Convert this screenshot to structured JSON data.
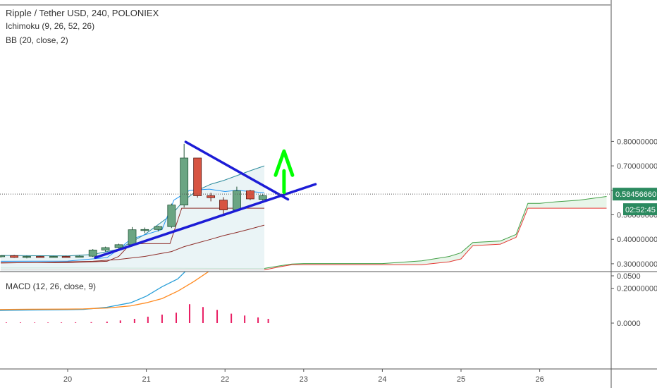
{
  "legend": {
    "title": "Ripple / Tether USD, 240, POLONIEX",
    "ichimoku": "Ichimoku (9, 26, 52, 26)",
    "bb": "BB (20, close, 2)",
    "macd": "MACD (12, 26, close, 9)"
  },
  "price_axis": {
    "ticks": [
      "0.80000000",
      "0.70000000",
      "0.60000000",
      "0.50000000",
      "0.40000000",
      "0.30000000",
      "0.20000000"
    ],
    "ticks_num": [
      0.8,
      0.7,
      0.6,
      0.5,
      0.4,
      0.3,
      0.2
    ],
    "current_price_label": "0.58456660",
    "countdown_label": "02:52:45",
    "current_price": 0.5846
  },
  "macd_axis": {
    "ticks": [
      "0.0500",
      "0.0000"
    ],
    "ticks_num": [
      0.05,
      0.0
    ]
  },
  "time_axis": {
    "ticks": [
      "20",
      "21",
      "22",
      "23",
      "24",
      "25",
      "26"
    ],
    "ticks_num": [
      20,
      21,
      22,
      23,
      24,
      25,
      26
    ]
  },
  "colors": {
    "bull": "#6ba583",
    "bear": "#d75442",
    "bull_border": "#225437",
    "bear_border": "#5b1a13",
    "bb_line": "#2b8a9b",
    "bb_fill": "#e6f2f4",
    "kijun": "#8e2e2a",
    "tenkan": "#2196f3",
    "span_a": "#43a047",
    "span_b": "#e53935",
    "cloud_bull": "#e8f5e9",
    "cloud_bear": "#fde0dc",
    "trendline": "#1c1cd6",
    "arrow": "#00ff00",
    "macd_line": "#2a9fd8",
    "signal_line": "#ff8a1f",
    "histogram": "#e91e63",
    "price_label": "#2b8a5f"
  },
  "chart_data": [
    {
      "type": "candlestick",
      "title": "Ripple / Tether USD, 240, POLONIEX",
      "ylim": [
        0.18,
        0.86
      ],
      "xlim": [
        19.15,
        26.9
      ],
      "candles": [
        {
          "t": 19.15,
          "o": 0.33,
          "h": 0.335,
          "l": 0.325,
          "c": 0.333
        },
        {
          "t": 19.32,
          "o": 0.333,
          "h": 0.336,
          "l": 0.324,
          "c": 0.326
        },
        {
          "t": 19.48,
          "o": 0.327,
          "h": 0.333,
          "l": 0.322,
          "c": 0.33
        },
        {
          "t": 19.65,
          "o": 0.33,
          "h": 0.332,
          "l": 0.326,
          "c": 0.329
        },
        {
          "t": 19.82,
          "o": 0.329,
          "h": 0.332,
          "l": 0.327,
          "c": 0.33
        },
        {
          "t": 19.98,
          "o": 0.33,
          "h": 0.333,
          "l": 0.327,
          "c": 0.329
        },
        {
          "t": 20.15,
          "o": 0.329,
          "h": 0.334,
          "l": 0.326,
          "c": 0.331
        },
        {
          "t": 20.32,
          "o": 0.331,
          "h": 0.36,
          "l": 0.328,
          "c": 0.356
        },
        {
          "t": 20.48,
          "o": 0.356,
          "h": 0.37,
          "l": 0.35,
          "c": 0.366
        },
        {
          "t": 20.65,
          "o": 0.366,
          "h": 0.382,
          "l": 0.362,
          "c": 0.378
        },
        {
          "t": 20.82,
          "o": 0.378,
          "h": 0.45,
          "l": 0.372,
          "c": 0.439
        },
        {
          "t": 20.98,
          "o": 0.439,
          "h": 0.448,
          "l": 0.425,
          "c": 0.44
        },
        {
          "t": 21.15,
          "o": 0.44,
          "h": 0.455,
          "l": 0.432,
          "c": 0.452
        },
        {
          "t": 21.32,
          "o": 0.452,
          "h": 0.546,
          "l": 0.446,
          "c": 0.54
        },
        {
          "t": 21.48,
          "o": 0.54,
          "h": 0.79,
          "l": 0.53,
          "c": 0.732
        },
        {
          "t": 21.65,
          "o": 0.732,
          "h": 0.732,
          "l": 0.57,
          "c": 0.578
        },
        {
          "t": 21.82,
          "o": 0.578,
          "h": 0.59,
          "l": 0.555,
          "c": 0.57
        },
        {
          "t": 21.98,
          "o": 0.56,
          "h": 0.572,
          "l": 0.5,
          "c": 0.52
        },
        {
          "t": 22.15,
          "o": 0.52,
          "h": 0.615,
          "l": 0.515,
          "c": 0.598
        },
        {
          "t": 22.32,
          "o": 0.598,
          "h": 0.602,
          "l": 0.56,
          "c": 0.565
        },
        {
          "t": 22.48,
          "o": 0.563,
          "h": 0.585,
          "l": 0.558,
          "c": 0.578
        }
      ]
    },
    {
      "type": "line",
      "title": "BB (20, close, 2)",
      "series": [
        {
          "name": "upper",
          "x": [
            19.15,
            19.5,
            20.0,
            20.32,
            20.65,
            20.98,
            21.32,
            21.48,
            21.65,
            21.82,
            21.98,
            22.15,
            22.32,
            22.5
          ],
          "y": [
            0.334,
            0.333,
            0.332,
            0.338,
            0.36,
            0.42,
            0.5,
            0.56,
            0.6,
            0.625,
            0.64,
            0.66,
            0.68,
            0.7
          ]
        },
        {
          "name": "basis",
          "x": [
            19.15,
            19.5,
            20.0,
            20.32,
            20.65,
            20.98,
            21.32,
            21.48,
            21.65,
            21.82,
            21.98,
            22.15,
            22.32,
            22.5
          ],
          "y": [
            0.303,
            0.305,
            0.308,
            0.31,
            0.318,
            0.33,
            0.35,
            0.37,
            0.385,
            0.4,
            0.415,
            0.428,
            0.442,
            0.458
          ]
        },
        {
          "name": "lower",
          "x": [
            19.15,
            19.5,
            20.0,
            20.32,
            20.65,
            20.98,
            21.32,
            21.48,
            21.65,
            21.82,
            21.98,
            22.15,
            22.32,
            22.5
          ],
          "y": [
            0.268,
            0.267,
            0.266,
            0.264,
            0.262,
            0.25,
            0.235,
            0.175,
            0.172,
            0.178,
            0.188,
            0.196,
            0.204,
            0.216
          ]
        }
      ]
    },
    {
      "type": "area",
      "title": "Ichimoku (9, 26, 52, 26)",
      "series": [
        {
          "name": "span_a",
          "x": [
            19.15,
            20.0,
            21.0,
            22.0,
            22.5,
            22.7,
            22.85,
            23.0,
            24.0,
            24.5,
            24.85,
            25.0,
            25.15,
            25.5,
            25.7,
            25.85,
            26.0,
            26.2,
            26.5,
            26.85
          ],
          "y": [
            0.283,
            0.283,
            0.282,
            0.281,
            0.281,
            0.292,
            0.299,
            0.301,
            0.301,
            0.312,
            0.33,
            0.345,
            0.387,
            0.393,
            0.42,
            0.547,
            0.547,
            0.553,
            0.56,
            0.575
          ]
        },
        {
          "name": "span_b",
          "x": [
            19.15,
            20.0,
            21.0,
            22.0,
            22.5,
            22.7,
            22.85,
            23.0,
            24.0,
            24.5,
            24.85,
            25.0,
            25.15,
            25.5,
            25.7,
            25.85,
            26.0,
            26.2,
            26.5,
            26.85
          ],
          "y": [
            0.275,
            0.275,
            0.275,
            0.275,
            0.275,
            0.288,
            0.296,
            0.296,
            0.296,
            0.296,
            0.308,
            0.32,
            0.374,
            0.38,
            0.408,
            0.527,
            0.527,
            0.527,
            0.527,
            0.527
          ]
        },
        {
          "name": "kijun",
          "x": [
            19.15,
            20.0,
            20.5,
            20.65,
            20.8,
            21.3,
            21.45,
            21.9,
            22.5
          ],
          "y": [
            0.305,
            0.305,
            0.31,
            0.33,
            0.382,
            0.382,
            0.527,
            0.527,
            0.527
          ]
        },
        {
          "name": "tenkan",
          "x": [
            19.15,
            20.0,
            20.5,
            20.65,
            20.8,
            21.2,
            21.35,
            21.55,
            21.8,
            22.0,
            22.15,
            22.5
          ],
          "y": [
            0.31,
            0.311,
            0.325,
            0.36,
            0.4,
            0.44,
            0.56,
            0.6,
            0.605,
            0.595,
            0.6,
            0.59
          ]
        }
      ]
    },
    {
      "type": "line",
      "title": "MACD (12, 26, close, 9)",
      "ylim": [
        -0.04,
        0.055
      ],
      "series": [
        {
          "name": "MACD",
          "x": [
            19.05,
            19.5,
            20.0,
            20.2,
            20.5,
            20.8,
            21.0,
            21.2,
            21.4,
            21.5
          ],
          "y": [
            0.0133,
            0.0138,
            0.0142,
            0.0145,
            0.0168,
            0.0215,
            0.0285,
            0.0385,
            0.0468,
            0.055
          ]
        },
        {
          "name": "signal",
          "x": [
            19.05,
            19.5,
            20.0,
            20.2,
            20.5,
            20.8,
            21.0,
            21.2,
            21.4,
            21.6,
            21.8
          ],
          "y": [
            0.0143,
            0.0146,
            0.0148,
            0.015,
            0.016,
            0.0182,
            0.0215,
            0.026,
            0.0338,
            0.0438,
            0.055
          ]
        },
        {
          "name": "histogram",
          "type": "bar",
          "x": [
            19.05,
            19.22,
            19.4,
            19.58,
            19.75,
            19.92,
            20.1,
            20.3,
            20.5,
            20.67,
            20.85,
            21.02,
            21.2,
            21.38,
            21.55,
            21.72,
            21.9,
            22.08,
            22.25,
            22.42,
            22.55
          ],
          "y": [
            0.0008,
            0.0007,
            0.0007,
            0.0006,
            0.0006,
            0.0007,
            0.0008,
            0.001,
            0.0016,
            0.0028,
            0.0045,
            0.0068,
            0.009,
            0.011,
            0.02,
            0.017,
            0.014,
            0.01,
            0.008,
            0.006,
            0.0045
          ]
        }
      ]
    }
  ],
  "annotations": {
    "trendlines": [
      {
        "name": "falling-resistance",
        "x": [
          21.5,
          22.8
        ],
        "y": [
          0.798,
          0.563
        ]
      },
      {
        "name": "rising-support",
        "x": [
          20.35,
          23.15
        ],
        "y": [
          0.325,
          0.625
        ]
      }
    ],
    "arrow": {
      "x": 22.75,
      "y_from": 0.592,
      "y_to": 0.76
    }
  }
}
